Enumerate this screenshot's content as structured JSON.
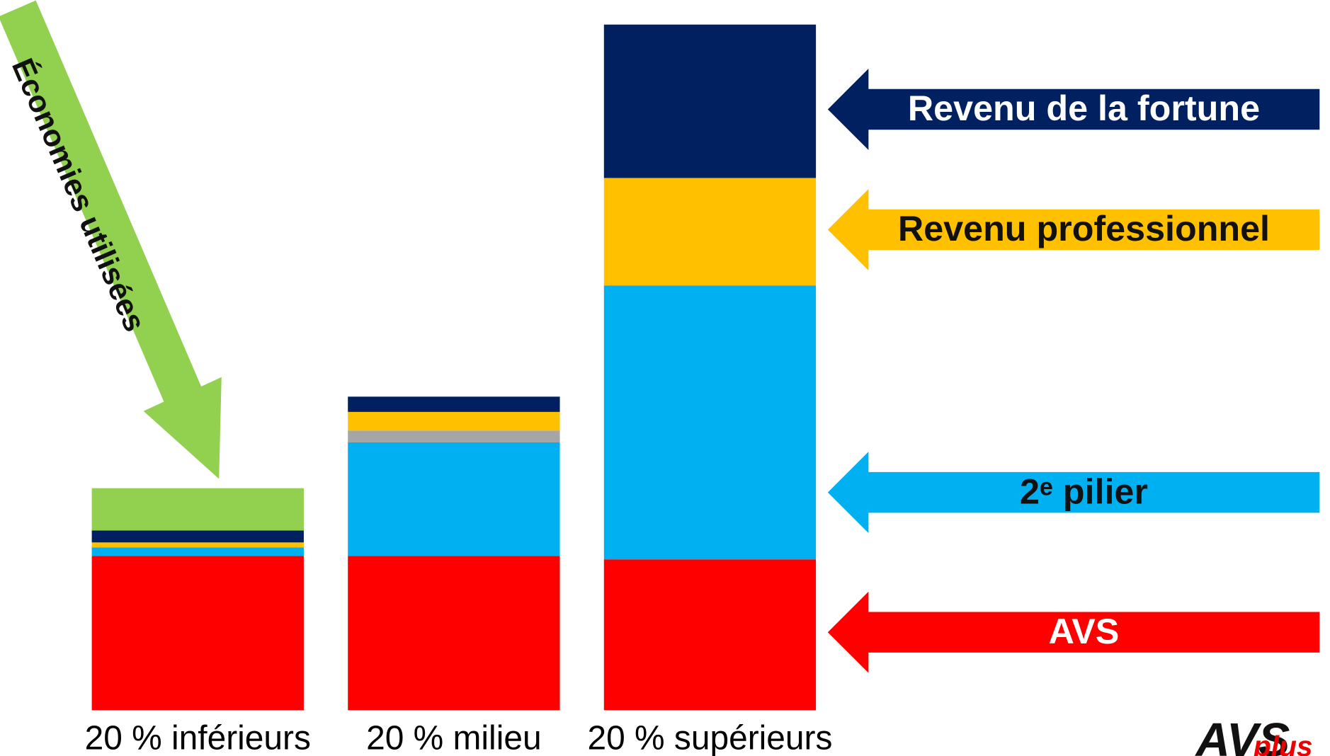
{
  "chart_data": {
    "type": "stacked_bar",
    "categories": [
      "20 % inférieurs",
      "20 % milieu",
      "20 % supérieurs"
    ],
    "series": [
      {
        "name": "AVS",
        "color": "#ff0000",
        "values": [
          182,
          182,
          178
        ]
      },
      {
        "name": "2ᵉ pilier",
        "color": "#00b0f0",
        "values": [
          10,
          134,
          323
        ]
      },
      {
        "color": "#a6a6a6",
        "values": [
          0,
          14,
          0
        ]
      },
      {
        "name": "Revenu professionnel",
        "color": "#ffc000",
        "values": [
          6,
          22,
          127
        ]
      },
      {
        "name": "Revenu de la fortune",
        "color": "#002060",
        "values": [
          14,
          18,
          181
        ]
      },
      {
        "name": "Économies utilisées",
        "color": "#92d050",
        "values": [
          50,
          0,
          0
        ]
      }
    ],
    "ylim": [
      0,
      820
    ],
    "logo": {
      "main": "AVS",
      "sub": "plus"
    }
  }
}
